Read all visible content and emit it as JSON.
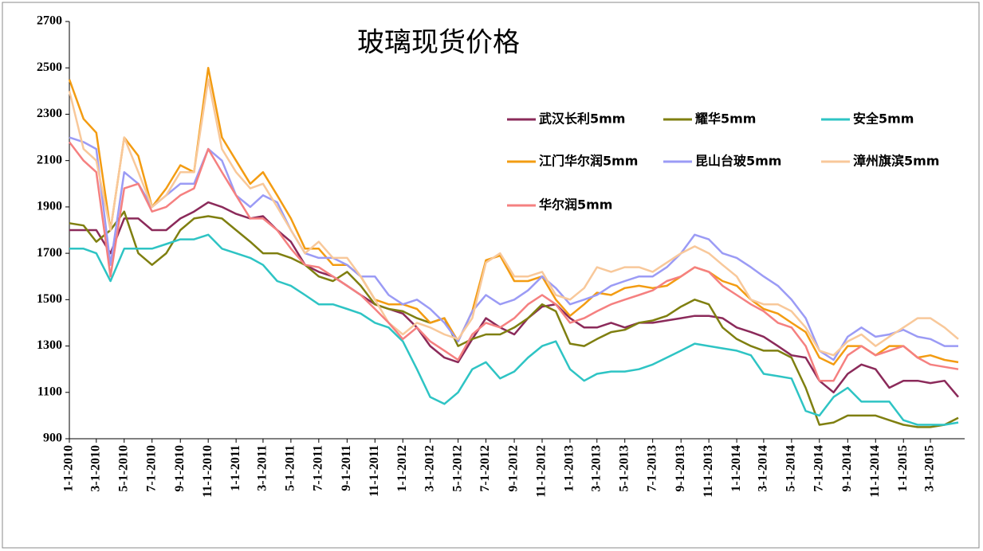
{
  "chart_data": {
    "type": "line",
    "title": "玻璃现货价格",
    "x": [
      "2010-01-01",
      "2010-02-01",
      "2010-03-01",
      "2010-04-01",
      "2010-05-01",
      "2010-06-01",
      "2010-07-01",
      "2010-08-01",
      "2010-09-01",
      "2010-10-01",
      "2010-11-01",
      "2010-12-01",
      "2011-01-01",
      "2011-02-01",
      "2011-03-01",
      "2011-04-01",
      "2011-05-01",
      "2011-06-01",
      "2011-07-01",
      "2011-08-01",
      "2011-09-01",
      "2011-10-01",
      "2011-11-01",
      "2011-12-01",
      "2012-01-01",
      "2012-02-01",
      "2012-03-01",
      "2012-04-01",
      "2012-05-01",
      "2012-06-01",
      "2012-07-01",
      "2012-08-01",
      "2012-09-01",
      "2012-10-01",
      "2012-11-01",
      "2012-12-01",
      "2013-01-01",
      "2013-02-01",
      "2013-03-01",
      "2013-04-01",
      "2013-05-01",
      "2013-06-01",
      "2013-07-01",
      "2013-08-01",
      "2013-09-01",
      "2013-10-01",
      "2013-11-01",
      "2013-12-01",
      "2014-01-01",
      "2014-02-01",
      "2014-03-01",
      "2014-04-01",
      "2014-05-01",
      "2014-06-01",
      "2014-07-01",
      "2014-08-01",
      "2014-09-01",
      "2014-10-01",
      "2014-11-01",
      "2014-12-01",
      "2015-01-01",
      "2015-02-01",
      "2015-03-01",
      "2015-04-01",
      "2015-05-01"
    ],
    "series": [
      {
        "name": "武汉长利5mm",
        "color": "#8b2a5a",
        "values": [
          1800,
          1800,
          1800,
          1700,
          1850,
          1850,
          1800,
          1800,
          1850,
          1880,
          1920,
          1900,
          1870,
          1850,
          1860,
          1800,
          1750,
          1650,
          1620,
          1600,
          1560,
          1520,
          1480,
          1460,
          1440,
          1380,
          1300,
          1250,
          1230,
          1330,
          1420,
          1380,
          1350,
          1420,
          1470,
          1480,
          1420,
          1380,
          1380,
          1400,
          1380,
          1400,
          1400,
          1410,
          1420,
          1430,
          1430,
          1420,
          1380,
          1360,
          1340,
          1300,
          1260,
          1250,
          1150,
          1100,
          1180,
          1220,
          1200,
          1120,
          1150,
          1150,
          1140,
          1150,
          1080
        ]
      },
      {
        "name": "耀华5mm",
        "color": "#7f7f10",
        "values": [
          1830,
          1820,
          1750,
          1800,
          1880,
          1700,
          1650,
          1700,
          1800,
          1850,
          1860,
          1850,
          1800,
          1750,
          1700,
          1700,
          1680,
          1650,
          1600,
          1580,
          1620,
          1560,
          1480,
          1460,
          1450,
          1420,
          1400,
          1420,
          1300,
          1330,
          1350,
          1350,
          1380,
          1420,
          1480,
          1450,
          1310,
          1300,
          1330,
          1360,
          1370,
          1400,
          1410,
          1430,
          1470,
          1500,
          1480,
          1380,
          1330,
          1300,
          1280,
          1280,
          1250,
          1120,
          960,
          970,
          1000,
          1000,
          1000,
          980,
          960,
          950,
          950,
          960,
          990
        ]
      },
      {
        "name": "安全5mm",
        "color": "#2ec4c4",
        "values": [
          1720,
          1720,
          1700,
          1580,
          1720,
          1720,
          1720,
          1740,
          1760,
          1760,
          1780,
          1720,
          1700,
          1680,
          1650,
          1580,
          1560,
          1520,
          1480,
          1480,
          1460,
          1440,
          1400,
          1380,
          1320,
          1200,
          1080,
          1050,
          1100,
          1200,
          1230,
          1160,
          1190,
          1250,
          1300,
          1320,
          1200,
          1150,
          1180,
          1190,
          1190,
          1200,
          1220,
          1250,
          1280,
          1310,
          1300,
          1290,
          1280,
          1260,
          1180,
          1170,
          1160,
          1020,
          1000,
          1080,
          1120,
          1060,
          1060,
          1060,
          980,
          960,
          960,
          960,
          970
        ]
      },
      {
        "name": "江门华尔润5mm",
        "color": "#f39c12",
        "values": [
          2450,
          2280,
          2220,
          1800,
          2200,
          2120,
          1900,
          1980,
          2080,
          2050,
          2500,
          2200,
          2100,
          2000,
          2050,
          1950,
          1850,
          1720,
          1720,
          1650,
          1650,
          1600,
          1500,
          1480,
          1480,
          1460,
          1400,
          1420,
          1320,
          1450,
          1670,
          1690,
          1580,
          1580,
          1600,
          1500,
          1430,
          1480,
          1530,
          1520,
          1550,
          1560,
          1550,
          1560,
          1600,
          1640,
          1620,
          1580,
          1560,
          1500,
          1460,
          1440,
          1400,
          1360,
          1250,
          1220,
          1300,
          1300,
          1260,
          1300,
          1300,
          1250,
          1260,
          1240,
          1230
        ]
      },
      {
        "name": "昆山台玻5mm",
        "color": "#9b9bf5",
        "values": [
          2200,
          2180,
          2150,
          1650,
          2050,
          2000,
          1900,
          1950,
          2000,
          2000,
          2150,
          2100,
          1950,
          1900,
          1950,
          1920,
          1800,
          1700,
          1680,
          1680,
          1650,
          1600,
          1600,
          1520,
          1480,
          1500,
          1460,
          1400,
          1320,
          1450,
          1520,
          1480,
          1500,
          1540,
          1600,
          1550,
          1480,
          1500,
          1520,
          1560,
          1580,
          1600,
          1600,
          1640,
          1700,
          1780,
          1760,
          1700,
          1680,
          1640,
          1600,
          1560,
          1500,
          1420,
          1280,
          1240,
          1340,
          1380,
          1340,
          1350,
          1370,
          1340,
          1330,
          1300,
          1300
        ]
      },
      {
        "name": "漳州旗滨5mm",
        "color": "#f8c89a",
        "values": [
          2400,
          2150,
          2100,
          1800,
          2200,
          2050,
          1900,
          1950,
          2050,
          2050,
          2450,
          2150,
          2050,
          1980,
          2000,
          1900,
          1800,
          1700,
          1750,
          1680,
          1680,
          1600,
          1500,
          1400,
          1350,
          1400,
          1380,
          1350,
          1330,
          1420,
          1660,
          1700,
          1600,
          1600,
          1620,
          1520,
          1500,
          1550,
          1640,
          1620,
          1640,
          1640,
          1620,
          1660,
          1700,
          1730,
          1700,
          1650,
          1600,
          1500,
          1480,
          1480,
          1450,
          1380,
          1280,
          1260,
          1320,
          1350,
          1300,
          1340,
          1380,
          1420,
          1420,
          1380,
          1330
        ]
      },
      {
        "name": "华尔润5mm",
        "color": "#f58080",
        "values": [
          2180,
          2100,
          2050,
          1600,
          1980,
          2000,
          1880,
          1900,
          1950,
          1980,
          2150,
          2050,
          1950,
          1850,
          1850,
          1800,
          1720,
          1650,
          1640,
          1600,
          1560,
          1520,
          1460,
          1400,
          1330,
          1380,
          1320,
          1280,
          1240,
          1350,
          1400,
          1380,
          1420,
          1480,
          1520,
          1480,
          1400,
          1420,
          1450,
          1480,
          1500,
          1520,
          1540,
          1580,
          1600,
          1640,
          1620,
          1560,
          1520,
          1480,
          1450,
          1400,
          1380,
          1300,
          1150,
          1150,
          1260,
          1300,
          1260,
          1280,
          1300,
          1250,
          1220,
          1210,
          1200
        ]
      }
    ],
    "xlim": [
      "2010-01-01",
      "2015-05-15"
    ],
    "xticks": [
      {
        "value": "2010-01-01",
        "label": "1-1-2010"
      },
      {
        "value": "2010-03-01",
        "label": "3-1-2010"
      },
      {
        "value": "2010-05-01",
        "label": "5-1-2010"
      },
      {
        "value": "2010-07-01",
        "label": "7-1-2010"
      },
      {
        "value": "2010-09-01",
        "label": "9-1-2010"
      },
      {
        "value": "2010-11-01",
        "label": "11-1-2010"
      },
      {
        "value": "2011-01-01",
        "label": "1-1-2011"
      },
      {
        "value": "2011-03-01",
        "label": "3-1-2011"
      },
      {
        "value": "2011-05-01",
        "label": "5-1-2011"
      },
      {
        "value": "2011-07-01",
        "label": "7-1-2011"
      },
      {
        "value": "2011-09-01",
        "label": "9-1-2011"
      },
      {
        "value": "2011-11-01",
        "label": "11-1-2011"
      },
      {
        "value": "2012-01-01",
        "label": "1-1-2012"
      },
      {
        "value": "2012-03-01",
        "label": "3-1-2012"
      },
      {
        "value": "2012-05-01",
        "label": "5-1-2012"
      },
      {
        "value": "2012-07-01",
        "label": "7-1-2012"
      },
      {
        "value": "2012-09-01",
        "label": "9-1-2012"
      },
      {
        "value": "2012-11-01",
        "label": "11-1-2012"
      },
      {
        "value": "2013-01-01",
        "label": "1-1-2013"
      },
      {
        "value": "2013-03-01",
        "label": "3-1-2013"
      },
      {
        "value": "2013-05-01",
        "label": "5-1-2013"
      },
      {
        "value": "2013-07-01",
        "label": "7-1-2013"
      },
      {
        "value": "2013-09-01",
        "label": "9-1-2013"
      },
      {
        "value": "2013-11-01",
        "label": "11-1-2013"
      },
      {
        "value": "2014-01-01",
        "label": "1-1-2014"
      },
      {
        "value": "2014-03-01",
        "label": "3-1-2014"
      },
      {
        "value": "2014-05-01",
        "label": "5-1-2014"
      },
      {
        "value": "2014-07-01",
        "label": "7-1-2014"
      },
      {
        "value": "2014-09-01",
        "label": "9-1-2014"
      },
      {
        "value": "2014-11-01",
        "label": "11-1-2014"
      },
      {
        "value": "2015-01-01",
        "label": "1-1-2015"
      },
      {
        "value": "2015-03-01",
        "label": "3-1-2015"
      }
    ],
    "ylim": [
      900,
      2700
    ],
    "yticks": [
      900,
      1100,
      1300,
      1500,
      1700,
      1900,
      2100,
      2300,
      2500,
      2700
    ],
    "grid": false,
    "legend": "top-right"
  }
}
